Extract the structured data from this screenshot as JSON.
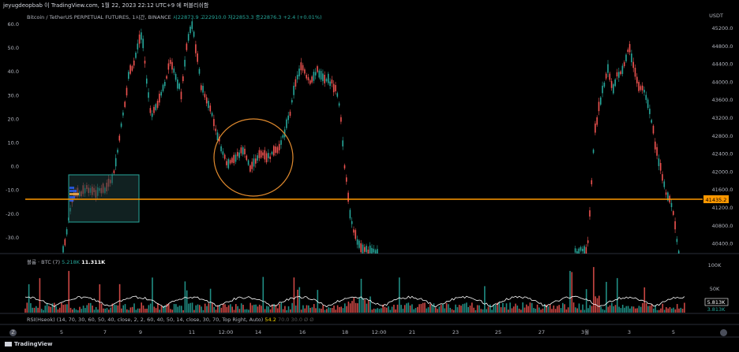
{
  "header": {
    "title": "jeyugdeopbab 이 TradingView.com, 1월 22, 2023 22:12 UTC+9 에 퍼블리쉬함",
    "symbol": "Bitcoin / TetherUS PERPETUAL FUTURES, 1시간, BINANCE",
    "ohlc": "시22873.9  고22910.0  저22853.3  종22876.3  +2.4 (+0.01%)",
    "currency": "USDT"
  },
  "chart_data": {
    "type": "candlestick",
    "left_axis_ticks": [
      "60.0",
      "50.0",
      "40.0",
      "30.0",
      "20.0",
      "10.0",
      "0.0",
      "-10.0",
      "-20.0",
      "-30.0"
    ],
    "right_axis_ticks": [
      "45200.0",
      "44800.0",
      "44400.0",
      "44000.0",
      "43600.0",
      "43200.0",
      "42800.0",
      "42400.0",
      "42000.0",
      "41600.0",
      "41200.0",
      "40800.0",
      "40400.0"
    ],
    "x_ticks": [
      "5",
      "7",
      "9",
      "11",
      "12:00",
      "14",
      "16",
      "18",
      "12:00",
      "21",
      "23",
      "25",
      "27",
      "3월",
      "3",
      "5"
    ],
    "price_line": {
      "value": "41435.2",
      "color": "#ff9800"
    },
    "up_color": "#26a69a",
    "down_color": "#ef5350",
    "volume_axis_ticks": [
      "100K",
      "50K"
    ],
    "volume_last": "5.813K",
    "volume_last2": "3.813K",
    "colors": {
      "box_fill": "#1f3d3d",
      "box_stroke": "#26a69a",
      "circle": "#e08a2e",
      "ma_line": "#ffffff"
    }
  },
  "volume": {
    "label": "볼륨 · BTC (7)",
    "v1": "5.218K",
    "v2": "11.311K"
  },
  "rsi": {
    "label": "RSI(Hseok) (14, 70, 30, 60, 50, 40, close, 2, 2, 60, 40, 50, 14, close, 30, 70, Top Right, Auto)",
    "value": "54.2",
    "extra": "70.0  30.0  Ø  Ø"
  },
  "footer": {
    "brand": "TradingView"
  }
}
